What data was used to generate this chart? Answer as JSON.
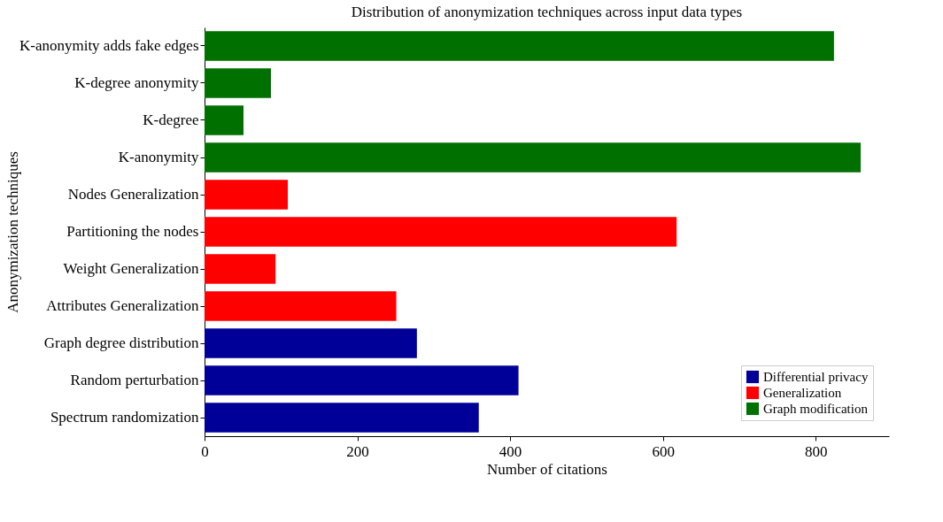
{
  "chart_data": {
    "type": "bar",
    "orientation": "horizontal",
    "title": "Distribution of anonymization techniques across input data types",
    "xlabel": "Number of citations",
    "ylabel": "Anonymization techniques",
    "categories": [
      "K-anonymity adds fake edges",
      "K-degree anonymity",
      "K-degree",
      "K-anonymity",
      "Nodes Generalization",
      "Partitioning the nodes",
      "Weight Generalization",
      "Attributes Generalization",
      "Graph degree distribution",
      "Random perturbation",
      "Spectrum randomization"
    ],
    "series": [
      {
        "name": "Differential privacy",
        "color": "#000099",
        "values": [
          null,
          null,
          null,
          null,
          null,
          null,
          null,
          null,
          278,
          411,
          359
        ]
      },
      {
        "name": "Generalization",
        "color": "#ff0000",
        "values": [
          null,
          null,
          null,
          null,
          109,
          618,
          93,
          251,
          null,
          null,
          null
        ]
      },
      {
        "name": "Graph modification",
        "color": "#007000",
        "values": [
          824,
          87,
          51,
          859,
          null,
          null,
          null,
          null,
          null,
          null,
          null
        ]
      }
    ],
    "xlim": [
      0,
      896
    ],
    "xticks": [
      0,
      200,
      400,
      600,
      800
    ],
    "grid": false,
    "legend": "bottom right"
  }
}
